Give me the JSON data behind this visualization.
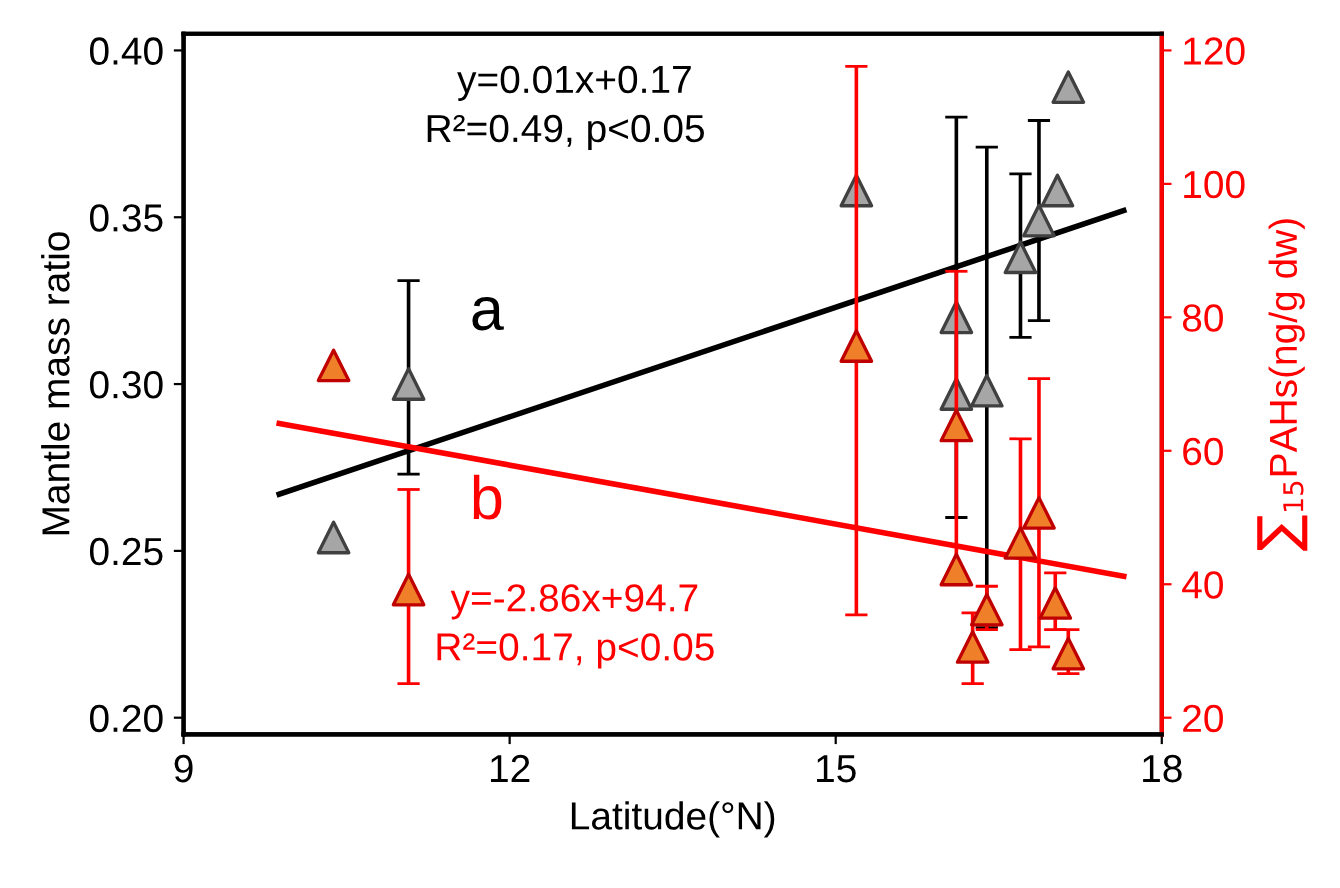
{
  "chart_data": {
    "type": "scatter",
    "xlabel": "Latitude(°N)",
    "ylabel": "Mantle mass ratio",
    "y2label": "∑$_{15}$PAHs(ng/g dw)",
    "xlim": [
      9,
      18
    ],
    "xticks": [
      9,
      12,
      15,
      18
    ],
    "ylim": [
      0.195,
      0.405
    ],
    "yticks": [
      {
        "value": 0.2,
        "label": "0.20"
      },
      {
        "value": 0.25,
        "label": "0.25"
      },
      {
        "value": 0.3,
        "label": "0.30"
      },
      {
        "value": 0.35,
        "label": "0.35"
      },
      {
        "value": 0.4,
        "label": "0.40"
      }
    ],
    "y2lim": [
      17.5,
      122.5
    ],
    "y2ticks": [
      20,
      40,
      60,
      80,
      100,
      120
    ],
    "marker": "triangle",
    "grid": false,
    "legend": false,
    "series": [
      {
        "color": "#a6a6a6",
        "x": [
          10.38,
          11.07,
          15.19,
          16.11,
          16.11,
          16.39,
          16.7,
          16.87,
          17.04,
          17.14
        ],
        "values": [
          0.254,
          0.3,
          0.358,
          0.32,
          0.297,
          0.298,
          0.338,
          0.349,
          0.358,
          0.389
        ],
        "errors": [
          null,
          [
            0.273,
            0.331
          ],
          null,
          [
            0.26,
            0.38
          ],
          null,
          [
            0.227,
            0.371
          ],
          [
            0.314,
            0.363
          ],
          [
            0.319,
            0.379
          ],
          null,
          null
        ]
      },
      {
        "axis": "y2",
        "color": "#f07f2a",
        "x": [
          10.38,
          11.07,
          15.19,
          16.11,
          16.11,
          16.26,
          16.39,
          16.7,
          16.87,
          17.02,
          17.14
        ],
        "values": [
          72.8,
          39.2,
          75.7,
          63.8,
          42.2,
          30.6,
          36.2,
          46.2,
          50.7,
          37.2,
          29.6
        ],
        "errors": [
          null,
          [
            25.1,
            54.2
          ],
          [
            35.4,
            117.6
          ],
          [
            40.7,
            86.9
          ],
          null,
          [
            25.1,
            35.7
          ],
          [
            33.2,
            39.7
          ],
          [
            30.2,
            61.8
          ],
          [
            30.6,
            70.8
          ],
          [
            33.2,
            41.7
          ],
          [
            26.6,
            33.2
          ]
        ]
      },
      {
        "type": "line",
        "marker": "none",
        "color": "#000000",
        "x": [
          9.88,
          17.65
        ],
        "values": [
          0.267,
          0.352
        ]
      },
      {
        "type": "line",
        "marker": "none",
        "axis": "y2",
        "color": "#ff0000",
        "x": [
          9.88,
          17.65
        ],
        "values": [
          64.1,
          41.2
        ]
      }
    ],
    "annotations": [
      "y=0.01x+0.17",
      "R²=0.49, p<0.05",
      "a",
      "b",
      "y=-2.86x+94.7",
      "R²=0.17, p<0.05"
    ]
  }
}
